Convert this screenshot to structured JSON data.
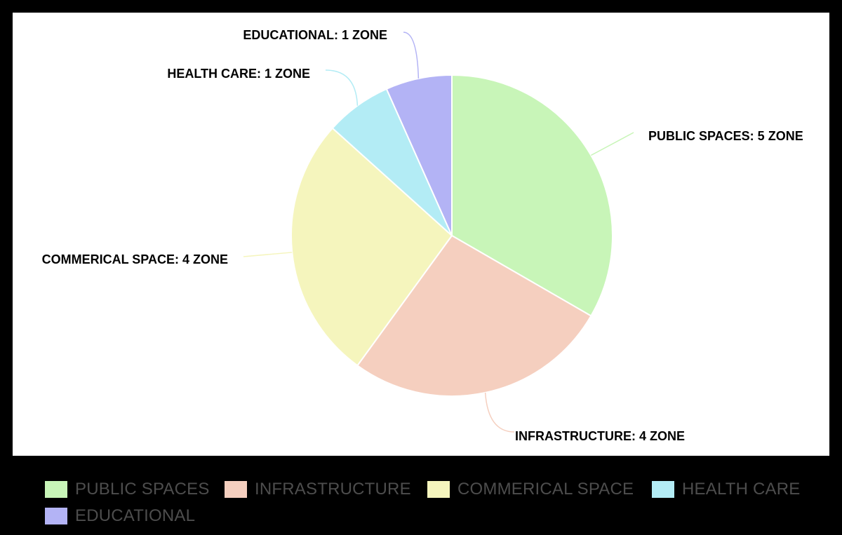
{
  "chart_data": {
    "type": "pie",
    "title": "",
    "categories": [
      "PUBLIC SPACES",
      "INFRASTRUCTURE",
      "COMMERICAL SPACE",
      "HEALTH CARE",
      "EDUCATIONAL"
    ],
    "values": [
      5,
      4,
      4,
      1,
      1
    ],
    "unit": "ZONE",
    "colors": [
      "#c8f5b8",
      "#f5cfbf",
      "#f5f5bd",
      "#b3ecf5",
      "#b3b3f5"
    ],
    "slice_labels": [
      "PUBLIC SPACES: 5 ZONE",
      "INFRASTRUCTURE: 4 ZONE",
      "COMMERICAL SPACE: 4 ZONE",
      "HEALTH CARE: 1 ZONE",
      "EDUCATIONAL: 1 ZONE"
    ],
    "legend_position": "bottom-left"
  }
}
